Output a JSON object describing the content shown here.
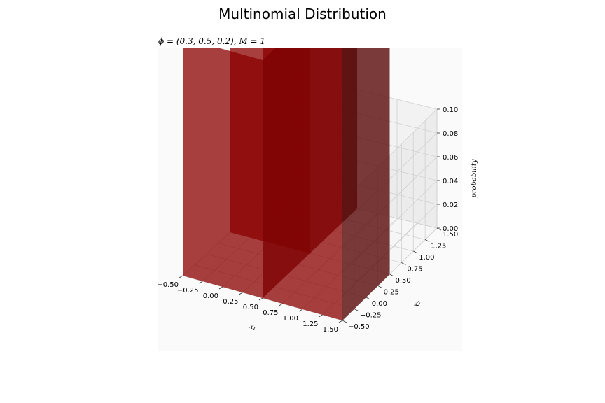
{
  "figure": {
    "suptitle": "Multinomial Distribution",
    "axes_title": "ϕ = (0.3, 0.5, 0.2), M = 1"
  },
  "chart_data": {
    "type": "bar3d",
    "title": "ϕ = (0.3, 0.5, 0.2), M = 1",
    "xlabel": "x₁",
    "ylabel": "x₂",
    "zlabel": "probability",
    "x_ticks": [
      "−0.50",
      "−0.25",
      "0.00",
      "0.25",
      "0.50",
      "0.75",
      "1.00",
      "1.25",
      "1.50"
    ],
    "y_ticks": [
      "−0.50",
      "−0.25",
      "0.00",
      "0.25",
      "0.50",
      "0.75",
      "1.00",
      "1.25",
      "1.50"
    ],
    "z_ticks": [
      "0.00",
      "0.02",
      "0.04",
      "0.06",
      "0.08",
      "0.10"
    ],
    "xlim": [
      -0.5,
      1.5
    ],
    "ylim": [
      -0.5,
      1.5
    ],
    "zlim": [
      0,
      0.1
    ],
    "grid": true,
    "bar_color": "#8b0000",
    "bar_alpha": 0.75,
    "bars": [
      {
        "x1": 0,
        "x2": 0,
        "probability": 0.2
      },
      {
        "x1": 1,
        "x2": 0,
        "probability": 0.3
      },
      {
        "x1": 0,
        "x2": 1,
        "probability": 0.5
      }
    ]
  }
}
